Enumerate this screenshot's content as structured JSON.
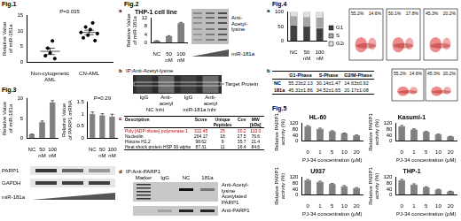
{
  "figure_labels": [
    "Fig.1",
    "Fig.2",
    "Fig.3",
    "Fig.4",
    "Fig.5"
  ],
  "panel_letters": {
    "fig2": [
      "a",
      "b",
      "c",
      "d"
    ],
    "fig4": [
      "a",
      "b"
    ]
  },
  "chart_data": [
    {
      "type": "strip",
      "categories": [
        "Non-cytogenetic AML",
        "CN-AML"
      ],
      "points": [
        [
          2.1,
          4.5,
          3.0,
          6.8,
          1.2
        ],
        [
          9.5,
          7.8,
          11.2,
          8.6,
          10.4,
          12.5,
          6.9,
          9.1
        ]
      ],
      "means": [
        3.5,
        9.5
      ],
      "errors": [
        1.0,
        0.7
      ],
      "ylabel": "Relative Value of miR-181a",
      "annotation": "P=0.035",
      "ylim": [
        0,
        15
      ],
      "yticks": [
        0,
        5,
        10,
        15
      ],
      "color": "#000000",
      "marker": "circle",
      "grid": false
    },
    {
      "type": "bar",
      "title": "THP-1 cell line",
      "categories": [
        "NC",
        "50 nM",
        "100 nM"
      ],
      "values": [
        1.0,
        3.2,
        9.5
      ],
      "errors": [
        0.1,
        0.3,
        0.4
      ],
      "ylabel": "Relative Value of miR-181a",
      "ylim": [
        0,
        12
      ],
      "yticks": [
        0,
        4,
        8,
        12
      ],
      "color": "#808080",
      "grid": false
    },
    {
      "type": "bar",
      "categories": [
        "NC",
        "50 nM",
        "100 nM"
      ],
      "values": [
        1.0,
        4.1,
        9.0
      ],
      "errors": [
        0.1,
        0.3,
        0.5
      ],
      "ylabel": "Relative Value of miR-181a",
      "ylim": [
        0,
        10
      ],
      "yticks": [
        0,
        5,
        10
      ],
      "color": "#808080",
      "grid": false
    },
    {
      "type": "bar",
      "categories": [
        "NC",
        "50 nM",
        "100 nM"
      ],
      "values": [
        1.0,
        0.94,
        0.9
      ],
      "errors": [
        0.08,
        0.07,
        0.09
      ],
      "ylabel": "Relative Value of PARP1 mRNA",
      "annotation": "P=0.29",
      "ylim": [
        0,
        1.5
      ],
      "yticks": [
        0,
        0.5,
        1,
        1.5
      ],
      "color": "#808080",
      "grid": false
    },
    {
      "type": "bar",
      "stacked": true,
      "categories": [
        "NC",
        "50 nM",
        "100 nM"
      ],
      "series": [
        {
          "name": "G1",
          "color": "#404040",
          "values": [
            55,
            50,
            45
          ]
        },
        {
          "name": "S",
          "color": "#a6a6a6",
          "values": [
            30,
            32,
            35
          ]
        },
        {
          "name": "G2/M",
          "color": "#e0e0e0",
          "values": [
            15,
            18,
            20
          ]
        }
      ],
      "ylim": [
        0,
        100
      ],
      "yticks": [
        0,
        50,
        100
      ],
      "legend": "right",
      "grid": false
    },
    {
      "type": "bar",
      "title": "HL-60",
      "categories": [
        "0",
        "1",
        "5",
        "10",
        "20"
      ],
      "values": [
        100,
        82,
        66,
        51,
        38
      ],
      "errors": [
        4,
        5,
        4,
        3,
        3
      ],
      "xlabel": "PJ-34 concentration (μM)",
      "ylabel": "Relative PARP1 activity (%)",
      "ylim": [
        0,
        120
      ],
      "yticks": [
        0,
        40,
        80,
        120
      ],
      "color": "#808080",
      "grid": false
    },
    {
      "type": "bar",
      "title": "Kasumi-1",
      "categories": [
        "0",
        "1",
        "5",
        "10",
        "20"
      ],
      "values": [
        100,
        78,
        61,
        44,
        30
      ],
      "errors": [
        5,
        4,
        4,
        3,
        2
      ],
      "xlabel": "PJ-34 concentration (μM)",
      "ylabel": "Relative PARP1 activity (%)",
      "ylim": [
        0,
        120
      ],
      "yticks": [
        0,
        40,
        80,
        120
      ],
      "color": "#808080",
      "grid": false
    },
    {
      "type": "bar",
      "title": "U937",
      "categories": [
        "0",
        "1",
        "5",
        "10",
        "20"
      ],
      "values": [
        100,
        88,
        73,
        59,
        47
      ],
      "errors": [
        4,
        5,
        4,
        4,
        3
      ],
      "xlabel": "PJ-34 concentration (μM)",
      "ylabel": "Relative PARP1 activity (%)",
      "ylim": [
        0,
        120
      ],
      "yticks": [
        0,
        40,
        80,
        120
      ],
      "color": "#808080",
      "grid": false
    },
    {
      "type": "bar",
      "title": "THP-1",
      "categories": [
        "0",
        "1",
        "5",
        "10",
        "20"
      ],
      "values": [
        100,
        71,
        52,
        36,
        24
      ],
      "errors": [
        5,
        4,
        3,
        3,
        2
      ],
      "xlabel": "PJ-34 concentration (μM)",
      "ylabel": "Relative PARP1 activity (%)",
      "ylim": [
        0,
        120
      ],
      "yticks": [
        0,
        40,
        80,
        120
      ],
      "color": "#808080",
      "grid": false
    }
  ],
  "fig2_blot_a": {
    "antibody": "Anti-Acetyl-lysine",
    "gradient_label": "miR-181a"
  },
  "fig2_ip_gel": {
    "title": "IP:Anti-Acetyl-lysine",
    "target": "Target Protein",
    "lanes": [
      "IgG",
      "Anti-acetyl",
      "IgG",
      "Anti-acetyl"
    ],
    "groups": [
      "NC Inhi",
      "miR-181a Inhi"
    ]
  },
  "fig2_table": {
    "columns": [
      "Description",
      "Score",
      "Unique Peptides",
      "Cov",
      "MW [kDa]"
    ],
    "rows": [
      {
        "cells": [
          "Poly [ADP-ribose] polymerase 1",
          "312.45",
          "25",
          "30.2",
          "113.0"
        ],
        "color": "#c00000"
      },
      {
        "cells": [
          "Nucleolin",
          "204.17",
          "18",
          "27.5",
          "76.6"
        ],
        "color": "#000000"
      },
      {
        "cells": [
          "Histone H1.2",
          "98.62",
          "9",
          "35.7",
          "21.4"
        ],
        "color": "#000000"
      },
      {
        "cells": [
          "Heat shock protein HSP 90-alpha",
          "87.31",
          "11",
          "16.4",
          "84.6"
        ],
        "color": "#000000"
      }
    ]
  },
  "fig2_ip_parp1": {
    "title": "IP:Anti-PARP1",
    "lanes": [
      "Marker",
      "IgG",
      "NC",
      "181a"
    ],
    "upper_antibody": "Anti-Acetyl-lysine",
    "band_label": "Acetylated PARP1",
    "lower_antibody": "Anti-PARP1"
  },
  "fig3_blot": {
    "rows": [
      "PARP1",
      "GAPDH"
    ],
    "gradient_label": "miR-181a"
  },
  "fig4_flow_a": [
    {
      "gates": [
        "55.2%",
        "14.6%"
      ]
    },
    {
      "gates": [
        "50.1%",
        "17.8%"
      ]
    },
    {
      "gates": [
        "45.3%",
        "20.2%"
      ]
    }
  ],
  "fig4_table": {
    "columns": [
      "G1-Phase",
      "S-Phase",
      "G2/M-Phase"
    ],
    "rows": [
      {
        "name": "NC",
        "cells": [
          "55.23±2.13",
          "30.14±1.47",
          "14.63±0.92"
        ]
      },
      {
        "name": "181a",
        "cells": [
          "45.31±1.86",
          "34.52±1.65",
          "20.17±1.08"
        ]
      }
    ]
  },
  "fig4_flow_b": [
    {
      "gates": [
        "55.2%",
        "14.6%"
      ]
    },
    {
      "gates": [
        "45.3%",
        "20.2%"
      ]
    }
  ]
}
